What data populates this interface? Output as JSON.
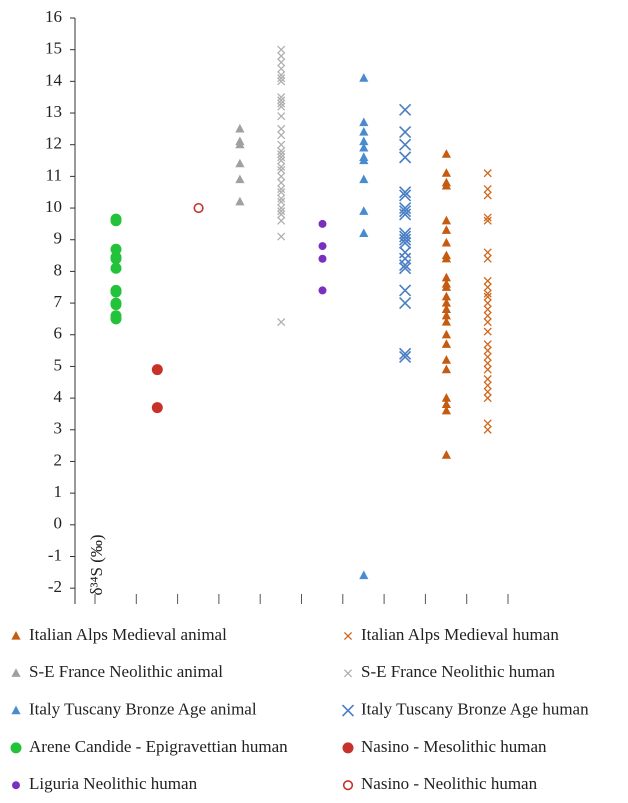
{
  "chart_data": {
    "type": "scatter",
    "y_label": "δ³⁴S (‰)",
    "ylim": [
      -2.5,
      16
    ],
    "yticks": [
      -2,
      -1,
      0,
      1,
      2,
      3,
      4,
      5,
      6,
      7,
      8,
      9,
      10,
      11,
      12,
      13,
      14,
      15,
      16
    ],
    "series": [
      {
        "name": "Arene Candide - Epigravettian human",
        "color": "#22c33a",
        "marker": "circle",
        "values": [
          9.65,
          9.6,
          8.7,
          8.45,
          8.4,
          8.1,
          7.4,
          7.35,
          7.0,
          6.95,
          6.6,
          6.5
        ]
      },
      {
        "name": "Nasino - Mesolithic human",
        "color": "#c8312a",
        "marker": "circle",
        "values": [
          4.9,
          3.7
        ]
      },
      {
        "name": "Nasino - Neolithic human",
        "color": "#c8312a",
        "marker": "open-circle",
        "values": [
          10.0
        ]
      },
      {
        "name": "S-E France Neolithic animal",
        "color": "#a0a0a0",
        "marker": "triangle",
        "values": [
          12.5,
          12.1,
          12.0,
          11.4,
          10.9,
          10.2
        ]
      },
      {
        "name": "S-E France Neolithic human",
        "color": "#b0b0b0",
        "marker": "x",
        "values": [
          15.0,
          14.8,
          14.6,
          14.4,
          14.2,
          14.1,
          14.0,
          13.5,
          13.4,
          13.3,
          13.2,
          12.9,
          12.5,
          12.3,
          12.0,
          11.8,
          11.7,
          11.6,
          11.5,
          11.3,
          11.2,
          11.0,
          10.8,
          10.6,
          10.5,
          10.3,
          10.2,
          10.0,
          9.9,
          9.8,
          9.6,
          9.1,
          6.4
        ]
      },
      {
        "name": "Liguria Neolithic human",
        "color": "#7b2fbe",
        "marker": "small-circle",
        "values": [
          9.5,
          8.8,
          8.4,
          7.4
        ]
      },
      {
        "name": "Italy Tuscany Bronze Age animal",
        "color": "#4a8bcf",
        "marker": "triangle",
        "values": [
          14.1,
          12.7,
          12.4,
          12.1,
          11.9,
          11.6,
          11.5,
          10.9,
          9.9,
          9.2,
          -1.6
        ]
      },
      {
        "name": "Italy Tuscany Bronze Age human",
        "color": "#4a7fc4",
        "marker": "big-x",
        "values": [
          13.1,
          12.4,
          12.0,
          11.6,
          10.5,
          10.4,
          10.0,
          9.9,
          9.8,
          9.2,
          9.1,
          9.0,
          8.9,
          8.6,
          8.4,
          8.2,
          8.1,
          7.4,
          7.0,
          5.4,
          5.3
        ]
      },
      {
        "name": "Italian Alps Medieval animal",
        "color": "#c55a11",
        "marker": "triangle",
        "values": [
          11.7,
          11.1,
          10.8,
          10.7,
          9.6,
          9.3,
          8.9,
          8.5,
          8.4,
          7.8,
          7.6,
          7.5,
          7.2,
          7.0,
          6.8,
          6.6,
          6.4,
          6.0,
          5.7,
          5.2,
          4.9,
          4.0,
          3.8,
          3.6,
          2.2
        ]
      },
      {
        "name": "Italian Alps Medieval human",
        "color": "#d0661c",
        "marker": "x",
        "values": [
          11.1,
          10.6,
          10.4,
          9.7,
          9.6,
          8.6,
          8.4,
          7.7,
          7.5,
          7.3,
          7.2,
          7.0,
          6.8,
          6.6,
          6.4,
          6.1,
          5.7,
          5.5,
          5.3,
          5.1,
          4.9,
          4.6,
          4.4,
          4.2,
          4.0,
          3.2,
          3.0
        ]
      }
    ]
  }
}
